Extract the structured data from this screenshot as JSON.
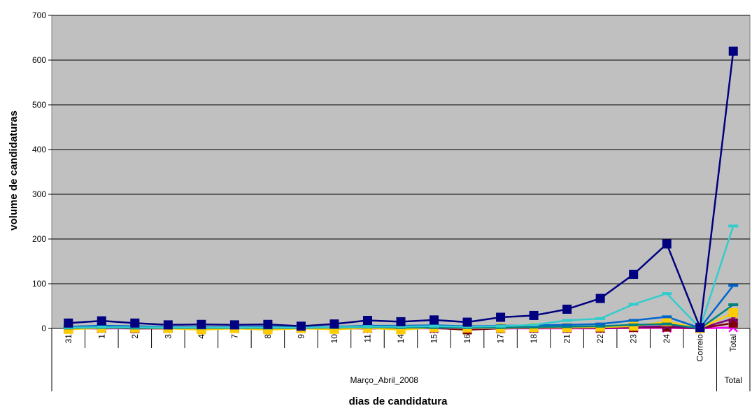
{
  "chart_data": {
    "type": "line",
    "xlabel": "dias de candidatura",
    "ylabel": "volume de candidaturas",
    "ylim": [
      0,
      700
    ],
    "yticks": [
      0,
      100,
      200,
      300,
      400,
      500,
      600,
      700
    ],
    "grid": "horizontal",
    "plot_background": "#C0C0C0",
    "categories": [
      "31",
      "1",
      "2",
      "3",
      "4",
      "7",
      "8",
      "9",
      "10",
      "11",
      "14",
      "15",
      "16",
      "17",
      "18",
      "21",
      "22",
      "23",
      "24",
      "Correio",
      "Total"
    ],
    "groups": [
      {
        "label": "Março_Abril_2008",
        "span": 20
      },
      {
        "label": "Total",
        "span": 1
      }
    ],
    "series": [
      {
        "color": "#000080",
        "marker": "square",
        "values": [
          12,
          17,
          12,
          8,
          9,
          8,
          9,
          5,
          10,
          18,
          15,
          19,
          14,
          25,
          29,
          43,
          67,
          121,
          189,
          2,
          620
        ]
      },
      {
        "color": "#33CCCC",
        "marker": "dash",
        "values": [
          2,
          3,
          3,
          2,
          2,
          2,
          2,
          2,
          3,
          4,
          4,
          5,
          4,
          5,
          8,
          18,
          22,
          54,
          78,
          1,
          229
        ]
      },
      {
        "color": "#0066CC",
        "marker": "dash",
        "values": [
          4,
          6,
          5,
          3,
          3,
          3,
          4,
          2,
          4,
          6,
          6,
          7,
          5,
          6,
          7,
          8,
          10,
          18,
          26,
          1,
          96
        ]
      },
      {
        "color": "#008080",
        "marker": "dash",
        "values": [
          1,
          2,
          1,
          1,
          1,
          1,
          1,
          1,
          2,
          3,
          2,
          2,
          2,
          2,
          3,
          4,
          5,
          8,
          10,
          0,
          53
        ]
      },
      {
        "color": "#FFCC00",
        "marker": "square",
        "values": [
          -2,
          1,
          1,
          0,
          -3,
          0,
          -3,
          0,
          -2,
          1,
          -3,
          2,
          1,
          1,
          2,
          2,
          3,
          5,
          15,
          0,
          35
        ]
      },
      {
        "color": "#800080",
        "marker": "x",
        "values": [
          0,
          0,
          1,
          0,
          0,
          0,
          0,
          0,
          0,
          0,
          0,
          1,
          0,
          0,
          1,
          1,
          2,
          3,
          5,
          0,
          22
        ]
      },
      {
        "color": "#800000",
        "marker": "square",
        "values": [
          0,
          1,
          0,
          0,
          0,
          0,
          0,
          0,
          0,
          1,
          0,
          1,
          -3,
          0,
          1,
          1,
          1,
          2,
          3,
          0,
          12
        ]
      },
      {
        "color": "#FF00FF",
        "marker": "x",
        "values": [
          0,
          0,
          0,
          0,
          0,
          0,
          0,
          0,
          0,
          0,
          0,
          0,
          0,
          0,
          0,
          0,
          0,
          1,
          1,
          0,
          2
        ]
      },
      {
        "color": "#CCCCFF",
        "marker": "diamond",
        "values": [
          1,
          1,
          1,
          1,
          1,
          1,
          1,
          1,
          1,
          1,
          1,
          1,
          1,
          1,
          1,
          1,
          1,
          3,
          4,
          0,
          10
        ]
      }
    ]
  }
}
